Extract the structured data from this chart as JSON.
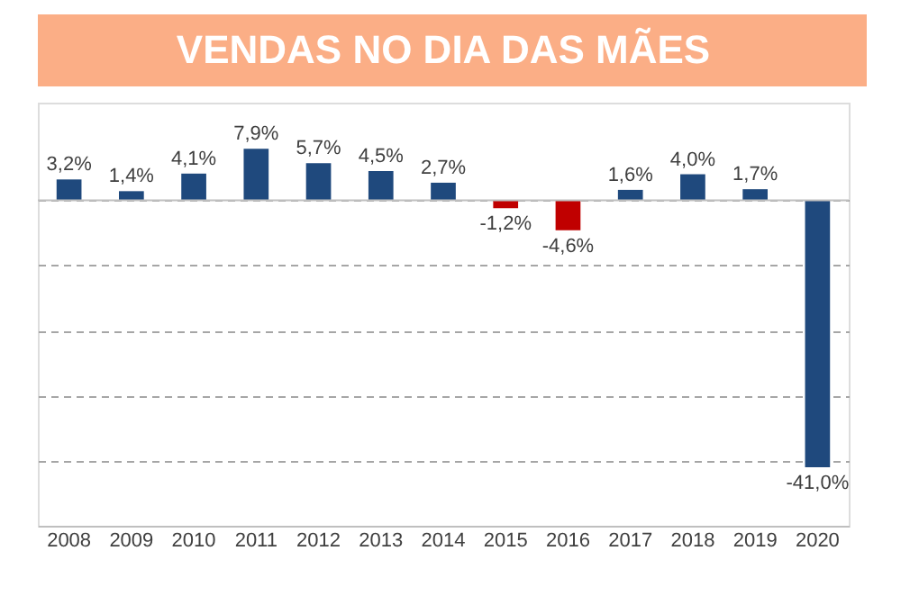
{
  "chart_data": {
    "type": "bar",
    "title": "VENDAS NO DIA DAS MÃES",
    "categories": [
      "2008",
      "2009",
      "2010",
      "2011",
      "2012",
      "2013",
      "2014",
      "2015",
      "2016",
      "2017",
      "2018",
      "2019",
      "2020"
    ],
    "values": [
      3.2,
      1.4,
      4.1,
      7.9,
      5.7,
      4.5,
      2.7,
      -1.2,
      -4.6,
      1.6,
      4.0,
      1.7,
      -41.0
    ],
    "colors": [
      "#1f497d",
      "#1f497d",
      "#1f497d",
      "#1f497d",
      "#1f497d",
      "#1f497d",
      "#1f497d",
      "#c00000",
      "#c00000",
      "#1f497d",
      "#1f497d",
      "#1f497d",
      "#1f497d"
    ],
    "value_labels": [
      "3,2%",
      "1,4%",
      "4,1%",
      "7,9%",
      "5,7%",
      "4,5%",
      "2,7%",
      "-1,2%",
      "-4,6%",
      "1,6%",
      "4,0%",
      "1,7%",
      "-41,0%"
    ],
    "ylim": [
      -50,
      15
    ],
    "yticks": [
      {
        "value": 0,
        "label": null
      },
      {
        "value": -10,
        "label": null
      },
      {
        "value": -20,
        "label": null
      },
      {
        "value": -30,
        "label": null
      },
      {
        "value": -40,
        "label": null
      },
      {
        "value": -50,
        "label": null
      }
    ],
    "grid": "y",
    "tick_labels": "x",
    "legend": false
  }
}
